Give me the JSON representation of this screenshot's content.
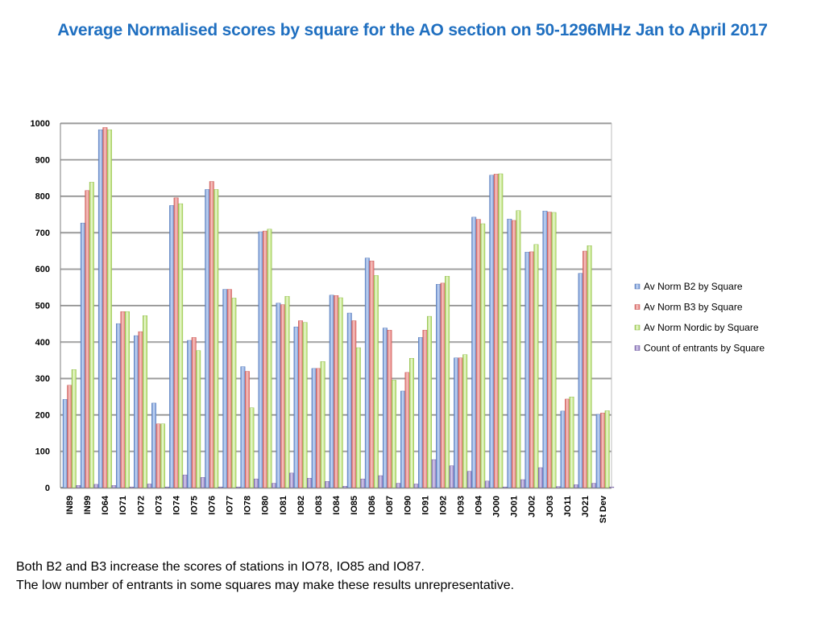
{
  "title": "Average Normalised scores by square for the AO section on 50-1296MHz Jan to April 2017",
  "notes": [
    "Both B2 and B3 increase the scores of stations in IO78, IO85 and IO87.",
    "The low number of entrants in some squares may make these results unrepresentative."
  ],
  "colors": {
    "b2": "#7fa2dc",
    "b3": "#e6827f",
    "nordic": "#b9e56a",
    "count": "#9b87c4",
    "grid": "#8c8c8c",
    "title": "#1f6fc0"
  },
  "chart_data": {
    "type": "bar",
    "title": "Average Normalised scores by square for the AO section on 50-1296MHz Jan to April 2017",
    "xlabel": "",
    "ylabel": "",
    "ylim": [
      0,
      1000
    ],
    "yticks": [
      0,
      100,
      200,
      300,
      400,
      500,
      600,
      700,
      800,
      900,
      1000
    ],
    "grid": true,
    "legend_position": "right",
    "categories": [
      "IN89",
      "IN99",
      "IO64",
      "IO71",
      "IO72",
      "IO73",
      "IO74",
      "IO75",
      "IO76",
      "IO77",
      "IO78",
      "IO80",
      "IO81",
      "IO82",
      "IO83",
      "IO84",
      "IO85",
      "IO86",
      "IO87",
      "IO90",
      "IO91",
      "IO92",
      "IO93",
      "IO94",
      "JO00",
      "JO01",
      "JO02",
      "JO03",
      "JO11",
      "JO21",
      "St Dev"
    ],
    "series": [
      {
        "name": "Av Norm B2 by Square",
        "values": [
          242,
          726,
          982,
          450,
          417,
          232,
          774,
          404,
          818,
          544,
          332,
          702,
          506,
          441,
          327,
          528,
          479,
          630,
          438,
          265,
          412,
          558,
          356,
          742,
          857,
          737,
          646,
          759,
          210,
          588,
          201
        ]
      },
      {
        "name": "Av Norm B3 by Square",
        "values": [
          281,
          815,
          988,
          483,
          428,
          175,
          795,
          412,
          840,
          544,
          319,
          704,
          502,
          458,
          327,
          527,
          458,
          622,
          432,
          316,
          432,
          561,
          356,
          736,
          860,
          733,
          647,
          756,
          243,
          649,
          205
        ]
      },
      {
        "name": "Av Norm Nordic by Square",
        "values": [
          324,
          838,
          982,
          483,
          472,
          175,
          779,
          376,
          818,
          520,
          219,
          709,
          525,
          453,
          346,
          521,
          384,
          582,
          295,
          355,
          470,
          580,
          365,
          724,
          861,
          760,
          667,
          755,
          249,
          664,
          211
        ]
      },
      {
        "name": "Count of entrants by Square",
        "values": [
          6,
          9,
          6,
          2,
          10,
          2,
          35,
          28,
          2,
          2,
          24,
          12,
          40,
          26,
          17,
          4,
          24,
          33,
          12,
          10,
          77,
          60,
          45,
          18,
          2,
          22,
          55,
          3,
          8,
          12,
          2
        ]
      }
    ]
  }
}
